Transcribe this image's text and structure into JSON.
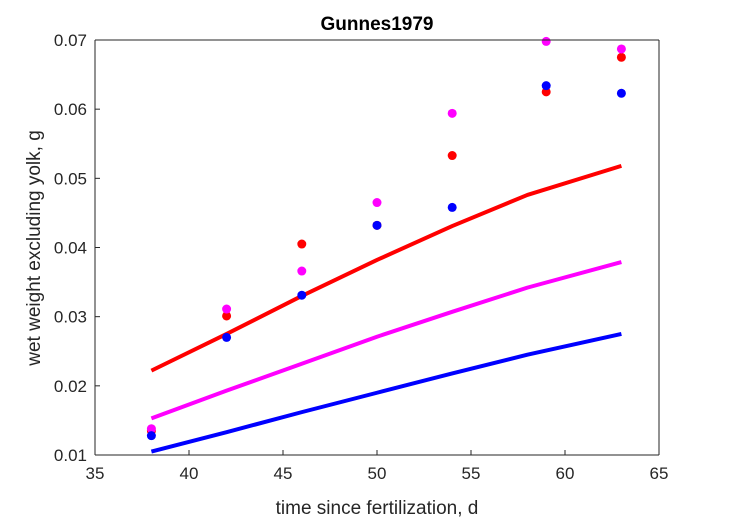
{
  "chart_data": {
    "type": "scatter",
    "title": "Gunnes1979",
    "xlabel": "time since fertilization, d",
    "ylabel": "wet weight excluding yolk, g",
    "xlim": [
      35,
      65
    ],
    "ylim": [
      0.01,
      0.07
    ],
    "xticks": [
      "35",
      "40",
      "45",
      "50",
      "55",
      "60",
      "65"
    ],
    "yticks": [
      "0.01",
      "0.02",
      "0.03",
      "0.04",
      "0.05",
      "0.06",
      "0.07"
    ],
    "grid": false,
    "legend": "none",
    "point_series": [
      {
        "color": "#ff0000",
        "x": [
          38,
          42,
          46,
          50,
          54,
          59,
          63
        ],
        "y": [
          0.0135,
          0.0301,
          0.0405,
          0.0432,
          0.0533,
          0.0625,
          0.0675
        ]
      },
      {
        "color": "#ff00ff",
        "x": [
          38,
          42,
          46,
          50,
          54,
          59,
          63
        ],
        "y": [
          0.0138,
          0.0311,
          0.0366,
          0.0465,
          0.0594,
          0.0698,
          0.0687
        ]
      },
      {
        "color": "#0000ff",
        "x": [
          38,
          42,
          46,
          50,
          54,
          59,
          63
        ],
        "y": [
          0.0128,
          0.027,
          0.0331,
          0.0432,
          0.0458,
          0.0634,
          0.0623
        ]
      }
    ],
    "line_series": [
      {
        "color": "#ff0000",
        "x": [
          38,
          42,
          46,
          50,
          54,
          58,
          63
        ],
        "y": [
          0.0222,
          0.0275,
          0.033,
          0.0382,
          0.0431,
          0.0476,
          0.0518
        ]
      },
      {
        "color": "#ff00ff",
        "x": [
          38,
          42,
          46,
          50,
          54,
          58,
          63
        ],
        "y": [
          0.0153,
          0.0193,
          0.0232,
          0.0271,
          0.0307,
          0.0342,
          0.0379
        ]
      },
      {
        "color": "#0000ff",
        "x": [
          38,
          42,
          46,
          50,
          54,
          58,
          63
        ],
        "y": [
          0.0105,
          0.0133,
          0.0162,
          0.019,
          0.0218,
          0.0245,
          0.0275
        ]
      }
    ]
  }
}
